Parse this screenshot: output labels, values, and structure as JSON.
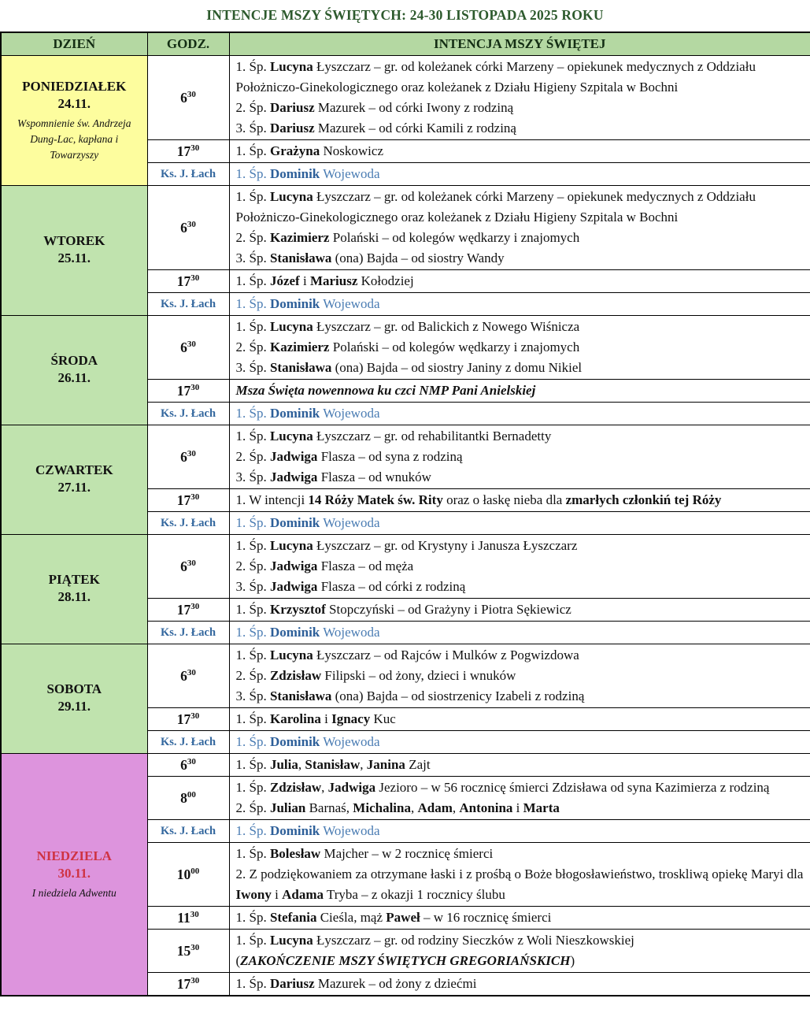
{
  "title": "INTENCJE MSZY ŚWIĘTYCH: 24-30 LISTOPADA 2025 ROKU",
  "colors": {
    "title_text": "#2d5a2d",
    "header_bg": "#b4d8a2",
    "day_green_bg": "#c0e3ae",
    "monday_yellow_bg": "#fdfd9e",
    "sunday_pink_bg": "#dd94dd",
    "sunday_red_text": "#cf3343",
    "priest_label_blue": "#33679e",
    "priest_intention_blue": "#4a7cb3",
    "border": "#000000"
  },
  "table": {
    "headers": [
      "DZIEŃ",
      "GODZ.",
      "INTENCJA MSZY ŚWIĘTEJ"
    ]
  },
  "priest_label": "Ks. J. Łach",
  "days": [
    {
      "id": "poniedzialek",
      "name": "PONIEDZIAŁEK",
      "date": "24.11.",
      "note": "Wspomnienie św. Andrzeja Dung-Lac, kapłana i Towarzyszy",
      "color": "yellow",
      "red": false,
      "rows": [
        {
          "time": "6",
          "sup": "30",
          "lines": [
            "1. Śp. **Lucyna** Łyszczarz – gr. od koleżanek córki Marzeny – opiekunek medycznych z Oddziału Położniczo-Ginekologicznego oraz koleżanek z Działu Higieny Szpitala w Bochni",
            "2. Śp. **Dariusz** Mazurek – od córki Iwony z rodziną",
            "3. Śp. **Dariusz** Mazurek – od córki Kamili z rodziną"
          ]
        },
        {
          "time": "17",
          "sup": "30",
          "lines": [
            "1. Śp. **Grażyna** Noskowicz"
          ]
        },
        {
          "priest": true,
          "lines": [
            "1. Śp. **Dominik** Wojewoda"
          ]
        }
      ]
    },
    {
      "id": "wtorek",
      "name": "WTOREK",
      "date": "25.11.",
      "note": "",
      "color": "green",
      "red": false,
      "rows": [
        {
          "time": "6",
          "sup": "30",
          "lines": [
            "1. Śp. **Lucyna** Łyszczarz – gr. od koleżanek córki Marzeny – opiekunek medycznych z Oddziału Położniczo-Ginekologicznego oraz koleżanek z Działu Higieny Szpitala w Bochni",
            "2. Śp. **Kazimierz** Polański – od kolegów wędkarzy i znajomych",
            "3. Śp. **Stanisława** (ona) Bajda – od siostry Wandy"
          ]
        },
        {
          "time": "17",
          "sup": "30",
          "lines": [
            "1. Śp. **Józef** i **Mariusz** Kołodziej"
          ]
        },
        {
          "priest": true,
          "lines": [
            "1. Śp. **Dominik** Wojewoda"
          ]
        }
      ]
    },
    {
      "id": "sroda",
      "name": "ŚRODA",
      "date": "26.11.",
      "note": "",
      "color": "green",
      "red": false,
      "rows": [
        {
          "time": "6",
          "sup": "30",
          "lines": [
            "1. Śp. **Lucyna** Łyszczarz – gr. od Balickich z Nowego Wiśnicza",
            "2. Śp. **Kazimierz** Polański – od kolegów wędkarzy i znajomych",
            "3. Śp. **Stanisława** (ona) Bajda – od siostry Janiny z domu Nikiel"
          ]
        },
        {
          "time": "17",
          "sup": "30",
          "lines": [
            "~~Msza Święta nowennowa ku czci NMP Pani Anielskiej~~"
          ]
        },
        {
          "priest": true,
          "lines": [
            "1. Śp. **Dominik** Wojewoda"
          ]
        }
      ]
    },
    {
      "id": "czwartek",
      "name": "CZWARTEK",
      "date": "27.11.",
      "note": "",
      "color": "green",
      "red": false,
      "rows": [
        {
          "time": "6",
          "sup": "30",
          "lines": [
            "1. Śp. **Lucyna** Łyszczarz – gr. od rehabilitantki Bernadetty",
            "2. Śp. **Jadwiga** Flasza – od syna z rodziną",
            "3. Śp. **Jadwiga** Flasza – od wnuków"
          ]
        },
        {
          "time": "17",
          "sup": "30",
          "lines": [
            "1. W intencji **14 Róży Matek św. Rity** oraz o łaskę nieba dla **zmarłych członkiń tej Róży**"
          ]
        },
        {
          "priest": true,
          "lines": [
            "1. Śp. **Dominik** Wojewoda"
          ]
        }
      ]
    },
    {
      "id": "piatek",
      "name": "PIĄTEK",
      "date": "28.11.",
      "note": "",
      "color": "green",
      "red": false,
      "rows": [
        {
          "time": "6",
          "sup": "30",
          "lines": [
            "1. Śp. **Lucyna** Łyszczarz – gr. od Krystyny i Janusza Łyszczarz",
            "2. Śp. **Jadwiga** Flasza – od męża",
            "3. Śp. **Jadwiga** Flasza – od córki z rodziną"
          ]
        },
        {
          "time": "17",
          "sup": "30",
          "lines": [
            "1. Śp. **Krzysztof** Stopczyński – od Grażyny i Piotra Sękiewicz"
          ]
        },
        {
          "priest": true,
          "lines": [
            "1. Śp. **Dominik** Wojewoda"
          ]
        }
      ]
    },
    {
      "id": "sobota",
      "name": "SOBOTA",
      "date": "29.11.",
      "note": "",
      "color": "green",
      "red": false,
      "rows": [
        {
          "time": "6",
          "sup": "30",
          "lines": [
            "1. Śp. **Lucyna** Łyszczarz – od Rajców i Mulków z Pogwizdowa",
            "2. Śp. **Zdzisław** Filipski – od żony, dzieci i wnuków",
            "3. Śp. **Stanisława** (ona) Bajda – od siostrzenicy Izabeli z rodziną"
          ]
        },
        {
          "time": "17",
          "sup": "30",
          "lines": [
            "1. Śp. **Karolina** i **Ignacy** Kuc"
          ]
        },
        {
          "priest": true,
          "lines": [
            "1. Śp. **Dominik** Wojewoda"
          ]
        }
      ]
    },
    {
      "id": "niedziela",
      "name": "NIEDZIELA",
      "date": "30.11.",
      "note": "I niedziela Adwentu",
      "color": "pink",
      "red": true,
      "rows": [
        {
          "time": "6",
          "sup": "30",
          "lines": [
            "1. Śp. **Julia**, **Stanisław**, **Janina** Zajt"
          ]
        },
        {
          "time": "8",
          "sup": "00",
          "lines": [
            "1. Śp. **Zdzisław**, **Jadwiga** Jezioro – w 56 rocznicę śmierci Zdzisława od syna Kazimierza z rodziną",
            "2. Śp. **Julian** Barnaś, **Michalina**, **Adam**, **Antonina** i **Marta**"
          ]
        },
        {
          "priest": true,
          "lines": [
            "1. Śp. **Dominik** Wojewoda"
          ]
        },
        {
          "time": "10",
          "sup": "00",
          "lines": [
            "1. Śp. **Bolesław** Majcher – w 2 rocznicę śmierci",
            "2. Z podziękowaniem za otrzymane łaski i z prośbą o Boże błogosławieństwo, troskliwą opiekę Maryi dla **Iwony** i **Adama** Tryba – z okazji 1 rocznicy ślubu"
          ]
        },
        {
          "time": "11",
          "sup": "30",
          "lines": [
            "1. Śp. **Stefania** Cieśla, mąż **Paweł** – w 16 rocznicę śmierci"
          ]
        },
        {
          "time": "15",
          "sup": "30",
          "lines": [
            "1. Śp. **Lucyna** Łyszczarz – gr. od rodziny Sieczków z Woli Nieszkowskiej",
            "(~~ZAKOŃCZENIE MSZY ŚWIĘTYCH GREGORIAŃSKICH~~)"
          ]
        },
        {
          "time": "17",
          "sup": "30",
          "lines": [
            "1. Śp. **Dariusz** Mazurek – od żony z dziećmi"
          ]
        }
      ]
    }
  ]
}
